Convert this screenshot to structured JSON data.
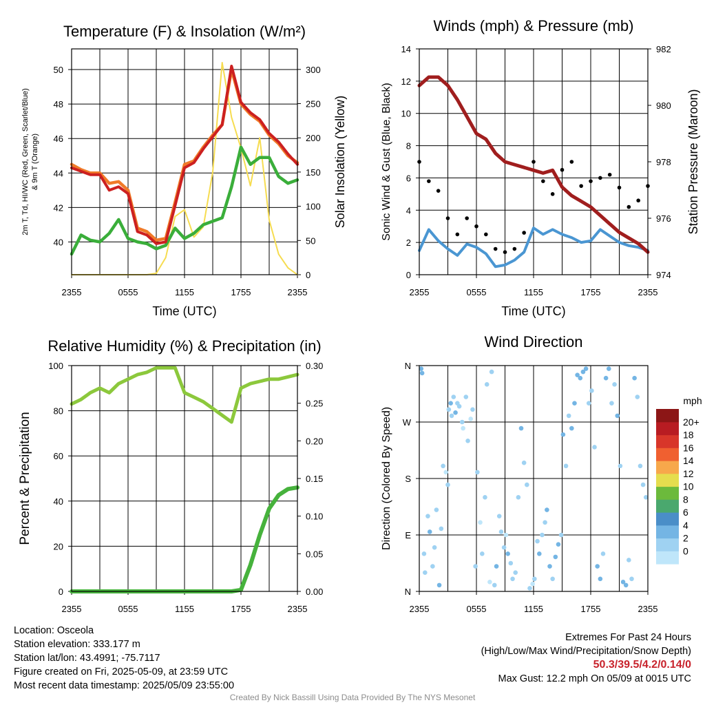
{
  "panels": {
    "temp": {
      "title": "Temperature (F) & Insolation (W/m²)",
      "xlabel": "Time (UTC)",
      "ylabel_left_1": "2m T, Td, HI/WC (Red, Green, Scarlet/Blue)",
      "ylabel_left_2": "& 9m T (Orange)",
      "ylabel_right": "Solar Insolation (Yellow)"
    },
    "wind": {
      "title": "Winds (mph) & Pressure (mb)",
      "xlabel": "Time (UTC)",
      "ylabel_left": "Sonic Wind & Gust (Blue, Black)",
      "ylabel_right": "Station Pressure (Maroon)"
    },
    "rh": {
      "title": "Relative Humidity (%) & Precipitation (in)",
      "ylabel_left": "Percent & Precipitation"
    },
    "dir": {
      "title": "Wind Direction",
      "ylabel_left": "Direction (Colored By Speed)",
      "legend_title": "mph"
    }
  },
  "x_tick_labels": [
    "2355",
    "0555",
    "1155",
    "1755",
    "2355"
  ],
  "colors": {
    "temp_red": "#cc2020",
    "temp_orange": "#f07a28",
    "dewpoint_green": "#3aae3a",
    "insolation_yellow": "#f6dc50",
    "wind_blue": "#4a96d2",
    "gust_black": "#000000",
    "pressure_maroon": "#a01e1e",
    "rh_lightgreen": "#8cc83c",
    "precip_green": "#46b23c"
  },
  "chart_data": [
    {
      "type": "line",
      "panel": "temp",
      "title": "Temperature (F) & Insolation (W/m²)",
      "xlabel": "Time (UTC)",
      "x_hours": [
        0,
        1,
        2,
        3,
        4,
        5,
        6,
        7,
        8,
        9,
        10,
        11,
        12,
        13,
        14,
        15,
        16,
        17,
        18,
        19,
        20,
        21,
        22,
        23,
        24
      ],
      "ylim": [
        38.1,
        51.2
      ],
      "y_ticks": [
        40,
        42,
        44,
        46,
        48,
        50
      ],
      "y2lim": [
        0,
        330
      ],
      "y2_ticks": [
        0,
        50,
        100,
        150,
        200,
        250,
        300
      ],
      "series": [
        {
          "name": "2m T",
          "color": "#cc2020",
          "values": [
            44.3,
            44.1,
            43.9,
            43.9,
            43.0,
            43.2,
            42.8,
            40.6,
            40.4,
            39.9,
            40.0,
            42.1,
            44.3,
            44.6,
            45.4,
            46.1,
            46.8,
            50.2,
            48.1,
            47.5,
            47.1,
            46.3,
            45.8,
            45.1,
            44.5
          ]
        },
        {
          "name": "9m T",
          "color": "#f07a28",
          "values": [
            44.5,
            44.2,
            44.0,
            44.0,
            43.4,
            43.5,
            43.0,
            40.8,
            40.6,
            40.1,
            40.2,
            42.3,
            44.5,
            44.7,
            45.5,
            46.2,
            46.8,
            50.0,
            48.0,
            47.4,
            47.0,
            46.2,
            45.7,
            45.0,
            44.6
          ]
        },
        {
          "name": "Td",
          "color": "#3aae3a",
          "values": [
            39.3,
            40.4,
            40.1,
            40.0,
            40.5,
            41.3,
            40.2,
            40.0,
            39.9,
            39.6,
            39.8,
            40.8,
            40.2,
            40.5,
            41.0,
            41.2,
            41.4,
            43.2,
            45.5,
            44.5,
            44.9,
            44.9,
            43.8,
            43.4,
            43.6
          ]
        },
        {
          "name": "Insolation",
          "axis": "right",
          "color": "#f6dc50",
          "values": [
            0,
            0,
            0,
            0,
            0,
            0,
            0,
            0,
            0,
            2,
            25,
            85,
            95,
            55,
            70,
            150,
            310,
            230,
            185,
            130,
            200,
            80,
            30,
            10,
            0
          ]
        }
      ]
    },
    {
      "type": "line",
      "panel": "wind",
      "title": "Winds (mph) & Pressure (mb)",
      "xlabel": "Time (UTC)",
      "x_hours": [
        0,
        1,
        2,
        3,
        4,
        5,
        6,
        7,
        8,
        9,
        10,
        11,
        12,
        13,
        14,
        15,
        16,
        17,
        18,
        19,
        20,
        21,
        22,
        23,
        24
      ],
      "ylim": [
        0,
        14
      ],
      "y_ticks": [
        0,
        2,
        4,
        6,
        8,
        10,
        12,
        14
      ],
      "y2lim": [
        974,
        982
      ],
      "y2_ticks": [
        974,
        976,
        978,
        980,
        982
      ],
      "series": [
        {
          "name": "Sonic Wind",
          "color": "#4a96d2",
          "values": [
            1.5,
            2.8,
            2.1,
            1.6,
            1.2,
            1.9,
            1.7,
            1.3,
            0.5,
            0.6,
            0.9,
            1.4,
            2.9,
            2.5,
            2.8,
            2.5,
            2.3,
            2.0,
            2.1,
            2.8,
            2.4,
            2.0,
            1.8,
            1.7,
            1.5
          ]
        },
        {
          "name": "Gust",
          "color": "#000000",
          "style": "dots",
          "values": [
            7.0,
            5.8,
            5.2,
            3.5,
            2.5,
            3.5,
            3.0,
            2.5,
            1.6,
            1.4,
            1.6,
            2.6,
            7.0,
            5.8,
            5.0,
            6.5,
            7.0,
            5.5,
            5.8,
            6.0,
            6.2,
            5.4,
            4.2,
            4.6,
            5.5
          ]
        },
        {
          "name": "Station Pressure",
          "axis": "right",
          "color": "#a01e1e",
          "values": [
            980.7,
            981.0,
            981.0,
            980.7,
            980.2,
            979.6,
            979.0,
            978.8,
            978.3,
            978.0,
            977.9,
            977.8,
            977.7,
            977.6,
            977.7,
            977.1,
            976.8,
            976.6,
            976.4,
            976.1,
            975.8,
            975.5,
            975.3,
            975.1,
            974.8
          ]
        }
      ]
    },
    {
      "type": "line",
      "panel": "rh",
      "title": "Relative Humidity (%) & Precipitation (in)",
      "x_hours": [
        0,
        1,
        2,
        3,
        4,
        5,
        6,
        7,
        8,
        9,
        10,
        11,
        12,
        13,
        14,
        15,
        16,
        17,
        18,
        19,
        20,
        21,
        22,
        23,
        24
      ],
      "ylim": [
        0,
        100
      ],
      "y_ticks": [
        0,
        20,
        40,
        60,
        80,
        100
      ],
      "y2lim": [
        0,
        0.3
      ],
      "y2_ticks": [
        "0.00",
        "0.05",
        "0.10",
        "0.15",
        "0.20",
        "0.25",
        "0.30"
      ],
      "series": [
        {
          "name": "RH",
          "color": "#8cc83c",
          "values": [
            83,
            85,
            88,
            90,
            88,
            92,
            94,
            96,
            97,
            99,
            99,
            99,
            88,
            86,
            84,
            81,
            78,
            75,
            90,
            92,
            93,
            94,
            94,
            95,
            96
          ]
        },
        {
          "name": "Precipitation",
          "axis": "right",
          "color": "#46b23c",
          "values": [
            0,
            0,
            0,
            0,
            0,
            0,
            0,
            0,
            0,
            0,
            0,
            0,
            0,
            0,
            0,
            0,
            0,
            0,
            0.002,
            0.035,
            0.075,
            0.11,
            0.128,
            0.136,
            0.138
          ]
        }
      ]
    },
    {
      "type": "scatter",
      "panel": "dir",
      "title": "Wind Direction",
      "y_ticks": [
        "N",
        "E",
        "S",
        "W",
        "N"
      ],
      "legend_labels": [
        "0",
        "2",
        "4",
        "6",
        "8",
        "10",
        "12",
        "14",
        "16",
        "18",
        "20+"
      ],
      "legend_colors": [
        "#bfe6fa",
        "#9fd2f2",
        "#74b5e4",
        "#4a8ec8",
        "#4aa86e",
        "#6cba3c",
        "#e5dd4e",
        "#f7a84b",
        "#f06030",
        "#d8362a",
        "#b81c22",
        "#8c1616"
      ],
      "points_hours": [
        0.2,
        0.3,
        0.5,
        0.6,
        0.9,
        1.1,
        1.4,
        1.6,
        1.8,
        2.1,
        2.3,
        2.5,
        2.8,
        3.0,
        3.1,
        3.3,
        3.4,
        3.6,
        3.8,
        4.0,
        4.2,
        4.5,
        4.6,
        4.9,
        5.1,
        5.4,
        5.6,
        5.9,
        6.1,
        6.4,
        6.6,
        6.9,
        7.1,
        7.4,
        7.6,
        7.9,
        8.1,
        8.4,
        8.6,
        8.9,
        9.1,
        9.3,
        9.6,
        9.8,
        10.1,
        10.4,
        10.7,
        11.0,
        11.3,
        11.6,
        11.9,
        12.1,
        12.4,
        12.6,
        12.9,
        13.2,
        13.4,
        13.7,
        14.0,
        14.3,
        14.6,
        14.9,
        15.1,
        15.4,
        15.7,
        16.0,
        16.3,
        16.6,
        16.9,
        17.2,
        17.5,
        17.8,
        18.1,
        18.4,
        18.7,
        19.0,
        19.3,
        19.6,
        19.9,
        20.2,
        20.5,
        20.8,
        21.1,
        21.4,
        21.7,
        22.0,
        22.3,
        22.6,
        22.9,
        23.2,
        23.5,
        23.8
      ],
      "points_dir_deg": [
        355,
        348,
        60,
        30,
        120,
        95,
        40,
        70,
        130,
        10,
        100,
        200,
        190,
        170,
        290,
        300,
        280,
        310,
        285,
        300,
        295,
        270,
        260,
        310,
        240,
        275,
        290,
        40,
        190,
        110,
        60,
        150,
        330,
        15,
        350,
        10,
        40,
        120,
        95,
        70,
        90,
        60,
        45,
        20,
        30,
        150,
        260,
        205,
        170,
        5,
        12,
        20,
        80,
        60,
        90,
        110,
        130,
        40,
        20,
        55,
        75,
        90,
        250,
        200,
        280,
        260,
        300,
        345,
        340,
        350,
        355,
        300,
        320,
        230,
        40,
        20,
        60,
        340,
        355,
        300,
        330,
        280,
        200,
        15,
        10,
        50,
        20,
        340,
        310,
        200,
        170,
        150
      ],
      "points_speed_mph": [
        4,
        3,
        2,
        1,
        2,
        3,
        1,
        2,
        1,
        4,
        2,
        1,
        0,
        1,
        2,
        3,
        1,
        2,
        3,
        1,
        2,
        1,
        0,
        1,
        1,
        0,
        1,
        2,
        1,
        0,
        1,
        2,
        1,
        0,
        1,
        2,
        3,
        1,
        2,
        1,
        0,
        3,
        1,
        2,
        1,
        2,
        3,
        1,
        2,
        1,
        0,
        2,
        1,
        3,
        2,
        1,
        4,
        3,
        2,
        3,
        4,
        2,
        3,
        2,
        1,
        3,
        4,
        4,
        3,
        4,
        3,
        2,
        1,
        2,
        3,
        4,
        2,
        3,
        4,
        1,
        2,
        3,
        2,
        4,
        3,
        1,
        2,
        3,
        1,
        2,
        1,
        2
      ]
    }
  ],
  "info": {
    "location": "Location: Osceola",
    "elevation": "Station elevation: 333.177 m",
    "latlon": "Station lat/lon: 43.4991; -75.7117",
    "created": "Figure created on Fri, 2025-05-09, at 23:59 UTC",
    "recent": "Most recent data timestamp: 2025/05/09 23:55:00"
  },
  "extremes": {
    "title": "Extremes For Past 24 Hours",
    "subtitle": "(High/Low/Max Wind/Precipitation/Snow Depth)",
    "values": "50.3/39.5/4.2/0.14/0",
    "gust": "Max Gust: 12.2 mph On 05/09 at 0015 UTC"
  },
  "credit": "Created By Nick Bassill Using Data Provided By The NYS Mesonet"
}
